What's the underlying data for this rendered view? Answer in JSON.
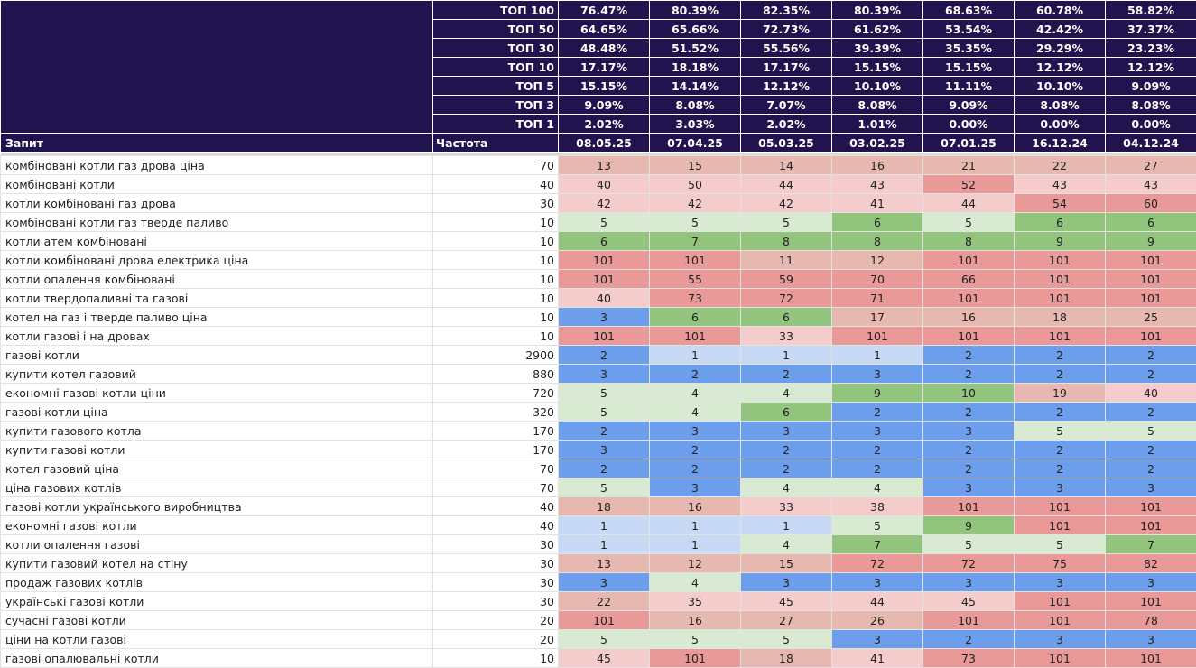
{
  "columns": {
    "query": "Запит",
    "frequency": "Частота"
  },
  "dates": [
    "08.05.25",
    "07.04.25",
    "05.03.25",
    "03.02.25",
    "07.01.25",
    "16.12.24",
    "04.12.24"
  ],
  "summary": [
    {
      "label": "ТОП 100",
      "values": [
        "76.47%",
        "80.39%",
        "82.35%",
        "80.39%",
        "68.63%",
        "60.78%",
        "58.82%"
      ]
    },
    {
      "label": "ТОП 50",
      "values": [
        "64.65%",
        "65.66%",
        "72.73%",
        "61.62%",
        "53.54%",
        "42.42%",
        "37.37%"
      ]
    },
    {
      "label": "ТОП 30",
      "values": [
        "48.48%",
        "51.52%",
        "55.56%",
        "39.39%",
        "35.35%",
        "29.29%",
        "23.23%"
      ]
    },
    {
      "label": "ТОП 10",
      "values": [
        "17.17%",
        "18.18%",
        "17.17%",
        "15.15%",
        "15.15%",
        "12.12%",
        "12.12%"
      ]
    },
    {
      "label": "ТОП 5",
      "values": [
        "15.15%",
        "14.14%",
        "12.12%",
        "10.10%",
        "11.11%",
        "10.10%",
        "9.09%"
      ]
    },
    {
      "label": "ТОП 3",
      "values": [
        "9.09%",
        "8.08%",
        "7.07%",
        "8.08%",
        "9.09%",
        "8.08%",
        "8.08%"
      ]
    },
    {
      "label": "ТОП 1",
      "values": [
        "2.02%",
        "3.03%",
        "2.02%",
        "1.01%",
        "0.00%",
        "0.00%",
        "0.00%"
      ]
    }
  ],
  "rows": [
    {
      "q": "комбіновані котли газ дрова ціна",
      "f": "70",
      "p": [
        "13",
        "15",
        "14",
        "16",
        "21",
        "22",
        "27"
      ]
    },
    {
      "q": "комбіновані котли",
      "f": "40",
      "p": [
        "40",
        "50",
        "44",
        "43",
        "52",
        "43",
        "43"
      ]
    },
    {
      "q": "котли комбіновані газ дрова",
      "f": "30",
      "p": [
        "42",
        "42",
        "42",
        "41",
        "44",
        "54",
        "60"
      ]
    },
    {
      "q": "комбіновані котли газ тверде паливо",
      "f": "10",
      "p": [
        "5",
        "5",
        "5",
        "6",
        "5",
        "6",
        "6"
      ]
    },
    {
      "q": "котли атем комбіновані",
      "f": "10",
      "p": [
        "6",
        "7",
        "8",
        "8",
        "8",
        "9",
        "9"
      ]
    },
    {
      "q": "котли комбіновані дрова електрика ціна",
      "f": "10",
      "p": [
        "101",
        "101",
        "11",
        "12",
        "101",
        "101",
        "101"
      ]
    },
    {
      "q": "котли опалення комбіновані",
      "f": "10",
      "p": [
        "101",
        "55",
        "59",
        "70",
        "66",
        "101",
        "101"
      ]
    },
    {
      "q": "котли твердопаливні та газові",
      "f": "10",
      "p": [
        "40",
        "73",
        "72",
        "71",
        "101",
        "101",
        "101"
      ]
    },
    {
      "q": "котел на газ і тверде паливо ціна",
      "f": "10",
      "p": [
        "3",
        "6",
        "6",
        "17",
        "16",
        "18",
        "25"
      ]
    },
    {
      "q": "котли газові і на дровах",
      "f": "10",
      "p": [
        "101",
        "101",
        "33",
        "101",
        "101",
        "101",
        "101"
      ]
    },
    {
      "q": "газові котли",
      "f": "2900",
      "p": [
        "2",
        "1",
        "1",
        "1",
        "2",
        "2",
        "2"
      ]
    },
    {
      "q": "купити котел газовий",
      "f": "880",
      "p": [
        "3",
        "2",
        "2",
        "3",
        "2",
        "2",
        "2"
      ]
    },
    {
      "q": "економні газові котли ціни",
      "f": "720",
      "p": [
        "5",
        "4",
        "4",
        "9",
        "10",
        "19",
        "40"
      ]
    },
    {
      "q": "газові котли ціна",
      "f": "320",
      "p": [
        "5",
        "4",
        "6",
        "2",
        "2",
        "2",
        "2"
      ]
    },
    {
      "q": "купити газового котла",
      "f": "170",
      "p": [
        "2",
        "3",
        "3",
        "3",
        "3",
        "5",
        "5"
      ]
    },
    {
      "q": "купити газові котли",
      "f": "170",
      "p": [
        "3",
        "2",
        "2",
        "2",
        "2",
        "2",
        "2"
      ]
    },
    {
      "q": "котел газовий ціна",
      "f": "70",
      "p": [
        "2",
        "2",
        "2",
        "2",
        "2",
        "2",
        "2"
      ]
    },
    {
      "q": "ціна газових котлів",
      "f": "70",
      "p": [
        "5",
        "3",
        "4",
        "4",
        "3",
        "3",
        "3"
      ]
    },
    {
      "q": "газові котли українського виробництва",
      "f": "40",
      "p": [
        "18",
        "16",
        "33",
        "38",
        "101",
        "101",
        "101"
      ]
    },
    {
      "q": "економні газові котли",
      "f": "40",
      "p": [
        "1",
        "1",
        "1",
        "5",
        "9",
        "101",
        "101"
      ]
    },
    {
      "q": "котли опалення газові",
      "f": "30",
      "p": [
        "1",
        "1",
        "4",
        "7",
        "5",
        "5",
        "7"
      ]
    },
    {
      "q": "купити газовий котел на стіну",
      "f": "30",
      "p": [
        "13",
        "12",
        "15",
        "72",
        "72",
        "75",
        "82"
      ]
    },
    {
      "q": "продаж газових котлів",
      "f": "30",
      "p": [
        "3",
        "4",
        "3",
        "3",
        "3",
        "3",
        "3"
      ]
    },
    {
      "q": "українські газові котли",
      "f": "30",
      "p": [
        "22",
        "35",
        "45",
        "44",
        "45",
        "101",
        "101"
      ]
    },
    {
      "q": "сучасні газові котли",
      "f": "20",
      "p": [
        "101",
        "16",
        "27",
        "26",
        "101",
        "101",
        "78"
      ]
    },
    {
      "q": "ціни на котли газові",
      "f": "20",
      "p": [
        "5",
        "5",
        "5",
        "3",
        "2",
        "3",
        "3"
      ]
    },
    {
      "q": "газові опалювальні котли",
      "f": "10",
      "p": [
        "45",
        "101",
        "18",
        "41",
        "73",
        "101",
        "101"
      ]
    }
  ],
  "colors": {
    "header_bg": "#20134e",
    "pos1": "#c7d9f5",
    "pos2_3": "#6d9eeb",
    "pos4_5": "#d9ead3",
    "pos6_10_strong": "#93c47d",
    "pos11_30": "#e6b8af",
    "pos31_50": "#f4cccc",
    "pos51_plus": "#ea9999"
  }
}
